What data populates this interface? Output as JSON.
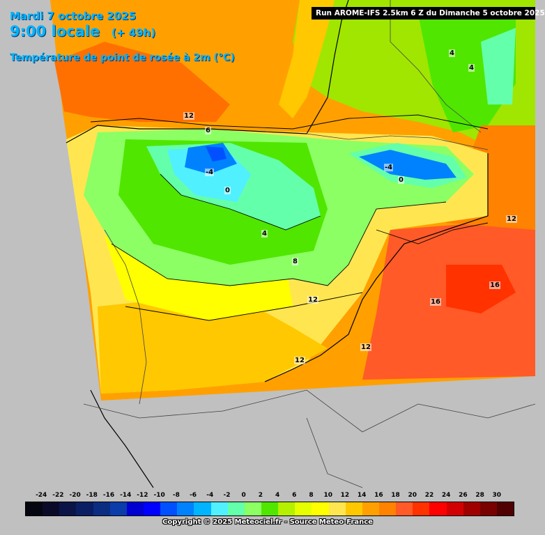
{
  "header": {
    "date": "Mardi 7 octobre 2025",
    "local_time": "9:00 locale",
    "offset": "(+ 49h)",
    "parameter": "Température de point de rosée à 2m (°C)"
  },
  "run_banner": "Run AROME-IFS 2.5km 6 Z du Dimanche 5 octobre 2025",
  "map": {
    "region": "Iberian Peninsula and southern France",
    "colors": {
      "background": "#c0c0c0",
      "sea_cold": "#ff8000",
      "contour": "#000000"
    },
    "contour_labels": [
      {
        "id": "l12a",
        "text": "12"
      },
      {
        "id": "l6",
        "text": "6"
      },
      {
        "id": "l4a",
        "text": "-4"
      },
      {
        "id": "l0a",
        "text": "0"
      },
      {
        "id": "l4b",
        "text": "4"
      },
      {
        "id": "l8",
        "text": "8"
      },
      {
        "id": "l12b",
        "text": "12"
      },
      {
        "id": "l12c",
        "text": "12"
      },
      {
        "id": "l12d",
        "text": "12"
      },
      {
        "id": "l4c",
        "text": "-4"
      },
      {
        "id": "l0b",
        "text": "0"
      },
      {
        "id": "l12e",
        "text": "12"
      },
      {
        "id": "l16a",
        "text": "16"
      },
      {
        "id": "l16b",
        "text": "16"
      },
      {
        "id": "l4d",
        "text": "4"
      },
      {
        "id": "l4e",
        "text": "4"
      }
    ]
  },
  "legend": {
    "ticks": [
      "-24",
      "-22",
      "-20",
      "-18",
      "-16",
      "-14",
      "-12",
      "-10",
      "-8",
      "-6",
      "-4",
      "-2",
      "0",
      "2",
      "4",
      "6",
      "8",
      "10",
      "12",
      "14",
      "16",
      "18",
      "20",
      "22",
      "24",
      "26",
      "28",
      "30"
    ],
    "colors": [
      "#05050f",
      "#0a0a28",
      "#0a1446",
      "#0a1e64",
      "#0a2d82",
      "#0a3caa",
      "#0000d2",
      "#0000ff",
      "#0050ff",
      "#0082ff",
      "#00b4ff",
      "#50f0ff",
      "#64ffaa",
      "#8cff64",
      "#50e600",
      "#b4f000",
      "#e6ff00",
      "#ffff00",
      "#ffe650",
      "#ffc800",
      "#ffa000",
      "#ff8200",
      "#ff5a28",
      "#ff3200",
      "#ff0000",
      "#d20000",
      "#a00000",
      "#780000",
      "#500000"
    ]
  },
  "copyright": "Copyright © 2025 Meteociel.fr - Source Meteo-France"
}
